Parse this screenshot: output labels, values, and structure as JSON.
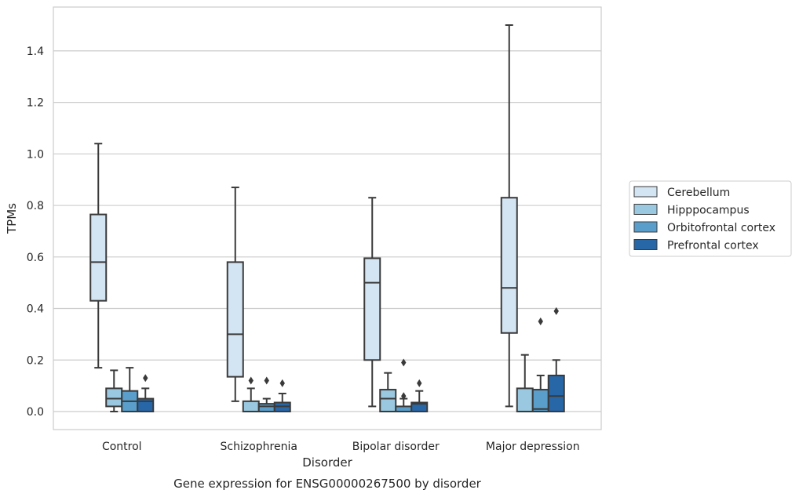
{
  "chart_data": {
    "type": "box",
    "title": "",
    "caption": "Gene expression for ENSG00000267500 by disorder",
    "xlabel": "Disorder",
    "ylabel": "TPMs",
    "ylim": [
      -0.07,
      1.57
    ],
    "yticks": [
      0.0,
      0.2,
      0.4,
      0.6,
      0.8,
      1.0,
      1.2,
      1.4
    ],
    "ytick_labels": [
      "0.0",
      "0.2",
      "0.4",
      "0.6",
      "0.8",
      "1.0",
      "1.2",
      "1.4"
    ],
    "grid": true,
    "legend_position": "right",
    "categories": [
      "Control",
      "Schizophrenia",
      "Bipolar disorder",
      "Major depression"
    ],
    "series": [
      {
        "name": "Cerebellum",
        "color": "#d3e4f3",
        "boxes": [
          {
            "whislo": 0.17,
            "q1": 0.43,
            "med": 0.58,
            "q3": 0.765,
            "whishi": 1.04,
            "fliers": []
          },
          {
            "whislo": 0.04,
            "q1": 0.135,
            "med": 0.3,
            "q3": 0.58,
            "whishi": 0.87,
            "fliers": []
          },
          {
            "whislo": 0.02,
            "q1": 0.2,
            "med": 0.5,
            "q3": 0.595,
            "whishi": 0.83,
            "fliers": []
          },
          {
            "whislo": 0.02,
            "q1": 0.305,
            "med": 0.48,
            "q3": 0.83,
            "whishi": 1.5,
            "fliers": []
          }
        ]
      },
      {
        "name": "Hipppocampus",
        "color": "#9ac8e0",
        "boxes": [
          {
            "whislo": 0.0,
            "q1": 0.02,
            "med": 0.05,
            "q3": 0.09,
            "whishi": 0.16,
            "fliers": []
          },
          {
            "whislo": 0.0,
            "q1": 0.0,
            "med": 0.0,
            "q3": 0.04,
            "whishi": 0.09,
            "fliers": [
              0.12
            ]
          },
          {
            "whislo": 0.0,
            "q1": 0.0,
            "med": 0.05,
            "q3": 0.085,
            "whishi": 0.15,
            "fliers": []
          },
          {
            "whislo": 0.0,
            "q1": 0.0,
            "med": 0.0,
            "q3": 0.09,
            "whishi": 0.22,
            "fliers": []
          }
        ]
      },
      {
        "name": "Orbitofrontal cortex",
        "color": "#5a9fcc",
        "boxes": [
          {
            "whislo": 0.0,
            "q1": 0.0,
            "med": 0.04,
            "q3": 0.08,
            "whishi": 0.17,
            "fliers": []
          },
          {
            "whislo": 0.0,
            "q1": 0.0,
            "med": 0.02,
            "q3": 0.03,
            "whishi": 0.05,
            "fliers": [
              0.12
            ]
          },
          {
            "whislo": 0.0,
            "q1": 0.0,
            "med": 0.0,
            "q3": 0.02,
            "whishi": 0.05,
            "fliers": [
              0.06,
              0.19
            ]
          },
          {
            "whislo": 0.0,
            "q1": 0.0,
            "med": 0.01,
            "q3": 0.085,
            "whishi": 0.14,
            "fliers": [
              0.35
            ]
          }
        ]
      },
      {
        "name": "Prefrontal cortex",
        "color": "#2767a8",
        "boxes": [
          {
            "whislo": 0.0,
            "q1": 0.0,
            "med": 0.04,
            "q3": 0.05,
            "whishi": 0.09,
            "fliers": [
              0.13
            ]
          },
          {
            "whislo": 0.0,
            "q1": 0.0,
            "med": 0.02,
            "q3": 0.035,
            "whishi": 0.07,
            "fliers": [
              0.11
            ]
          },
          {
            "whislo": 0.0,
            "q1": 0.0,
            "med": 0.03,
            "q3": 0.035,
            "whishi": 0.08,
            "fliers": [
              0.11
            ]
          },
          {
            "whislo": 0.0,
            "q1": 0.0,
            "med": 0.06,
            "q3": 0.14,
            "whishi": 0.2,
            "fliers": [
              0.39
            ]
          }
        ]
      }
    ]
  }
}
